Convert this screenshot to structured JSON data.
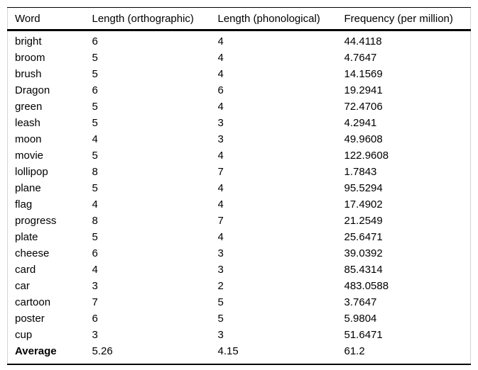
{
  "chart_data": {
    "type": "table",
    "columns": [
      "Word",
      "Length (orthographic)",
      "Length (phonological)",
      "Frequency (per million)"
    ],
    "rows": [
      [
        "bright",
        6,
        4,
        44.4118
      ],
      [
        "broom",
        5,
        4,
        4.7647
      ],
      [
        "brush",
        5,
        4,
        14.1569
      ],
      [
        "Dragon",
        6,
        6,
        19.2941
      ],
      [
        "green",
        5,
        4,
        72.4706
      ],
      [
        "leash",
        5,
        3,
        4.2941
      ],
      [
        "moon",
        4,
        3,
        49.9608
      ],
      [
        "movie",
        5,
        4,
        122.9608
      ],
      [
        "lollipop",
        8,
        7,
        1.7843
      ],
      [
        "plane",
        5,
        4,
        95.5294
      ],
      [
        "flag",
        4,
        4,
        17.4902
      ],
      [
        "progress",
        8,
        7,
        21.2549
      ],
      [
        "plate",
        5,
        4,
        25.6471
      ],
      [
        "cheese",
        6,
        3,
        39.0392
      ],
      [
        "card",
        4,
        3,
        85.4314
      ],
      [
        "car",
        3,
        2,
        483.0588
      ],
      [
        "cartoon",
        7,
        5,
        3.7647
      ],
      [
        "poster",
        6,
        5,
        5.9804
      ],
      [
        "cup",
        3,
        3,
        51.6471
      ],
      [
        "Average",
        5.26,
        4.15,
        61.2
      ]
    ]
  },
  "table": {
    "columns": {
      "word": "Word",
      "len_orth": "Length (orthographic)",
      "len_phon": "Length (phonological)",
      "freq": "Frequency (per million)"
    },
    "rows": [
      {
        "word": "bright",
        "len_orth": "6",
        "len_phon": "4",
        "freq": "44.4118"
      },
      {
        "word": "broom",
        "len_orth": "5",
        "len_phon": "4",
        "freq": "4.7647"
      },
      {
        "word": "brush",
        "len_orth": "5",
        "len_phon": "4",
        "freq": "14.1569"
      },
      {
        "word": "Dragon",
        "len_orth": "6",
        "len_phon": "6",
        "freq": "19.2941"
      },
      {
        "word": "green",
        "len_orth": "5",
        "len_phon": "4",
        "freq": "72.4706"
      },
      {
        "word": "leash",
        "len_orth": "5",
        "len_phon": "3",
        "freq": "4.2941"
      },
      {
        "word": "moon",
        "len_orth": "4",
        "len_phon": "3",
        "freq": "49.9608"
      },
      {
        "word": "movie",
        "len_orth": "5",
        "len_phon": "4",
        "freq": "122.9608"
      },
      {
        "word": "lollipop",
        "len_orth": "8",
        "len_phon": "7",
        "freq": "1.7843"
      },
      {
        "word": "plane",
        "len_orth": "5",
        "len_phon": "4",
        "freq": "95.5294"
      },
      {
        "word": "flag",
        "len_orth": "4",
        "len_phon": "4",
        "freq": "17.4902"
      },
      {
        "word": "progress",
        "len_orth": "8",
        "len_phon": "7",
        "freq": "21.2549"
      },
      {
        "word": "plate",
        "len_orth": "5",
        "len_phon": "4",
        "freq": "25.6471"
      },
      {
        "word": "cheese",
        "len_orth": "6",
        "len_phon": "3",
        "freq": "39.0392"
      },
      {
        "word": "card",
        "len_orth": "4",
        "len_phon": "3",
        "freq": "85.4314"
      },
      {
        "word": "car",
        "len_orth": "3",
        "len_phon": "2",
        "freq": "483.0588"
      },
      {
        "word": "cartoon",
        "len_orth": "7",
        "len_phon": "5",
        "freq": "3.7647"
      },
      {
        "word": "poster",
        "len_orth": "6",
        "len_phon": "5",
        "freq": "5.9804"
      },
      {
        "word": "cup",
        "len_orth": "3",
        "len_phon": "3",
        "freq": "51.6471"
      }
    ],
    "average_row": {
      "label": "Average",
      "len_orth": "5.26",
      "len_phon": "4.15",
      "freq": "61.2"
    }
  },
  "colors": {
    "background": "#ffffff",
    "text": "#000000",
    "rule": "#000000",
    "side_border": "#d6d6d6"
  }
}
